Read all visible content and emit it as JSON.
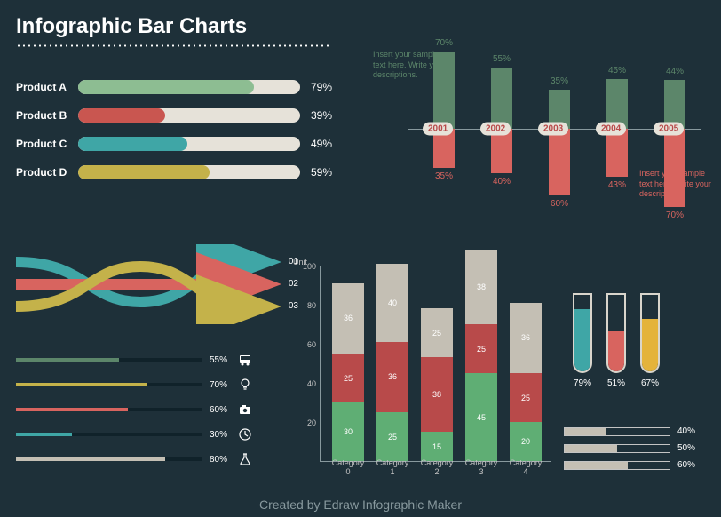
{
  "title": "Infographic Bar Charts",
  "footer": "Created by Edraw Infographic Maker",
  "background_color": "#1e3039",
  "palette": {
    "green": "#69a37a",
    "light_green": "#8dbd92",
    "red": "#c95650",
    "red_light": "#d8645f",
    "yellow": "#c4b24a",
    "teal": "#3fa6a6",
    "beige": "#c4bfb4",
    "track": "#e6e2d9",
    "grey_text": "#88999e"
  },
  "products": {
    "items": [
      {
        "label": "Product A",
        "pct": 79,
        "color": "#8dbd92"
      },
      {
        "label": "Product B",
        "pct": 39,
        "color": "#c95650"
      },
      {
        "label": "Product C",
        "pct": 49,
        "color": "#3fa6a6"
      },
      {
        "label": "Product D",
        "pct": 59,
        "color": "#c4b24a"
      }
    ]
  },
  "timeline": {
    "years": [
      "2001",
      "2002",
      "2003",
      "2004",
      "2005"
    ],
    "up": [
      70,
      55,
      35,
      45,
      44
    ],
    "down": [
      35,
      40,
      60,
      43,
      70
    ],
    "up_color": "#5c866a",
    "down_color": "#d8645f",
    "note_up": "Insert your sample text here. Write your descriptions.",
    "note_down": "Insert your sample text here. Write your descriptions."
  },
  "flows": {
    "labels": [
      "01",
      "02",
      "03"
    ],
    "colors": [
      "#3fa6a6",
      "#d8645f",
      "#c4b24a"
    ]
  },
  "iconbars": {
    "items": [
      {
        "pct": 55,
        "color": "#5c866a",
        "icon": "bus"
      },
      {
        "pct": 70,
        "color": "#c4b24a",
        "icon": "bulb"
      },
      {
        "pct": 60,
        "color": "#d8645f",
        "icon": "camera"
      },
      {
        "pct": 30,
        "color": "#3fa6a6",
        "icon": "clock"
      },
      {
        "pct": 80,
        "color": "#c4bfb4",
        "icon": "flask"
      }
    ]
  },
  "stacked": {
    "ylabel": "Unit",
    "ymax": 100,
    "ytick_step": 20,
    "categories": [
      "Category 0",
      "Category 1",
      "Category 2",
      "Category 3",
      "Category 4"
    ],
    "colors": {
      "bottom": "#5fae74",
      "mid": "#b84a4a",
      "top": "#c4bfb4"
    },
    "series": [
      {
        "bottom": 30,
        "mid": 25,
        "top": 36
      },
      {
        "bottom": 25,
        "mid": 36,
        "top": 40
      },
      {
        "bottom": 15,
        "mid": 38,
        "top": 25
      },
      {
        "bottom": 45,
        "mid": 25,
        "top": 38
      },
      {
        "bottom": 20,
        "mid": 25,
        "top": 36
      }
    ]
  },
  "tubes": {
    "items": [
      {
        "pct": 79,
        "color": "#3fa6a6"
      },
      {
        "pct": 51,
        "color": "#d8645f"
      },
      {
        "pct": 67,
        "color": "#e4b33b"
      }
    ]
  },
  "simple_progress": {
    "items": [
      {
        "pct": 40
      },
      {
        "pct": 50
      },
      {
        "pct": 60
      }
    ],
    "fill_color": "#c4bfb4"
  }
}
